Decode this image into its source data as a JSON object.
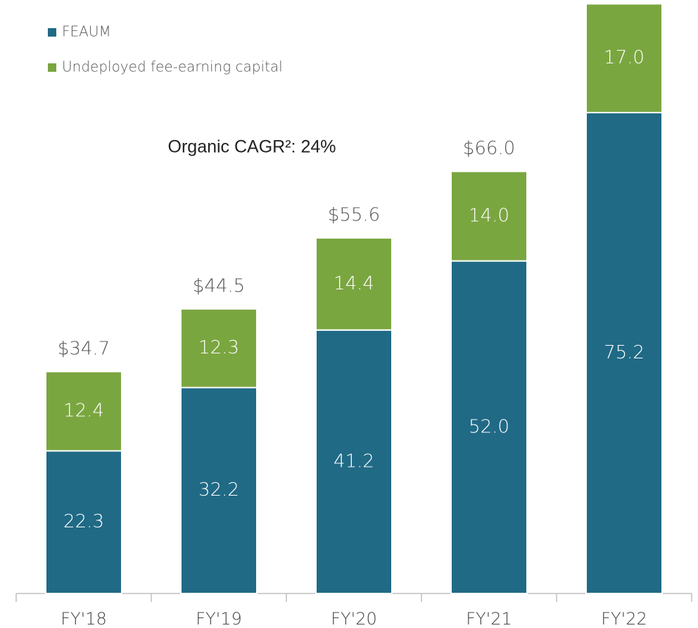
{
  "chart_data": {
    "type": "stacked_bar",
    "annotation": "Organic CAGR²: 24%",
    "categories": [
      "FY'18",
      "FY'19",
      "FY'20",
      "FY'21",
      "FY'22"
    ],
    "series": [
      {
        "name": "FEAUM",
        "color": "#206a86",
        "values": [
          22.3,
          32.2,
          41.2,
          52.0,
          75.2
        ],
        "value_labels": [
          "22.3",
          "32.2",
          "41.2",
          "52.0",
          "75.2"
        ]
      },
      {
        "name": "Undeployed fee-earning capital",
        "color": "#7aa640",
        "values": [
          12.4,
          12.3,
          14.4,
          14.0,
          17.0
        ],
        "value_labels": [
          "12.4",
          "12.3",
          "14.4",
          "14.0",
          "17.0"
        ]
      }
    ],
    "totals": [
      34.7,
      44.5,
      55.6,
      66.0,
      null
    ],
    "total_labels": [
      "$34.7",
      "$44.5",
      "$55.6",
      "$66.0",
      null
    ],
    "ylim": [
      0,
      92.8
    ],
    "legend": "top-left"
  }
}
